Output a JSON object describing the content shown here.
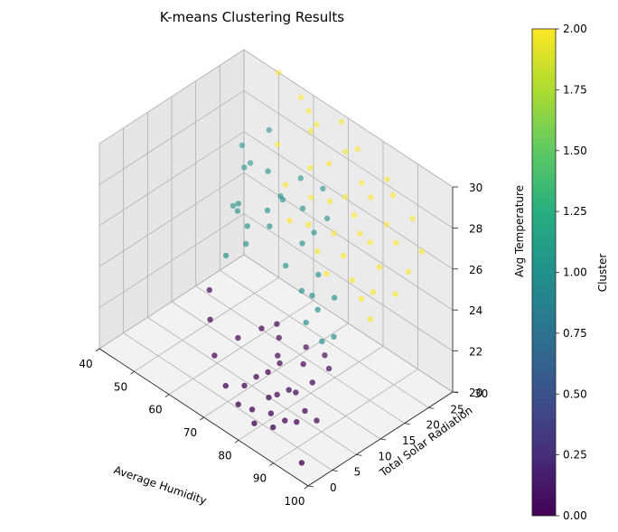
{
  "chart_data": {
    "type": "scatter",
    "title": "K-means Clustering Results",
    "xlabel": "Average Humidity",
    "ylabel": "Total Solar Radiation",
    "zlabel": "Avg Temperature",
    "xlim": [
      40,
      100
    ],
    "ylim": [
      0,
      30
    ],
    "zlim": [
      20,
      30
    ],
    "x_ticks": [
      40,
      50,
      60,
      70,
      80,
      90,
      100
    ],
    "y_ticks": [
      0,
      5,
      10,
      15,
      20,
      25,
      30
    ],
    "z_ticks": [
      20,
      22,
      24,
      26,
      28,
      30
    ],
    "grid": true,
    "colormap": "viridis",
    "colorbar": {
      "label": "Cluster",
      "min": 0.0,
      "max": 2.0,
      "ticks": [
        "0.00",
        "0.25",
        "0.50",
        "0.75",
        "1.00",
        "1.25",
        "1.50",
        "1.75",
        "2.00"
      ]
    },
    "cluster_colors": {
      "0": "#440154",
      "1": "#21918c",
      "2": "#fde725"
    },
    "series": [
      {
        "cluster": 0,
        "points": [
          [
            75,
            12,
            22.6
          ],
          [
            73,
            13,
            22.9
          ],
          [
            80,
            14,
            22.4
          ],
          [
            84,
            15,
            22.3
          ],
          [
            78,
            10,
            22.0
          ],
          [
            86,
            11,
            21.8
          ],
          [
            76,
            9,
            21.5
          ],
          [
            74,
            8,
            21.2
          ],
          [
            79,
            7,
            20.9
          ],
          [
            82,
            9,
            21.3
          ],
          [
            85,
            6,
            20.6
          ],
          [
            88,
            8,
            21.1
          ],
          [
            72,
            7,
            20.7
          ],
          [
            77,
            5,
            20.4
          ],
          [
            81,
            6,
            20.5
          ],
          [
            87,
            7,
            20.6
          ],
          [
            90,
            9,
            20.7
          ],
          [
            83,
            5,
            20.2
          ],
          [
            79,
            4,
            20.1
          ],
          [
            73,
            5,
            20.2
          ],
          [
            68,
            6,
            20.4
          ],
          [
            62,
            8,
            20.9
          ],
          [
            58,
            10,
            21.9
          ],
          [
            55,
            12,
            22.7
          ],
          [
            66,
            10,
            21.9
          ],
          [
            94,
            3,
            20.0
          ],
          [
            70,
            12,
            22.5
          ],
          [
            82,
            12,
            22.1
          ],
          [
            88,
            13,
            22.4
          ],
          [
            76,
            11,
            22.0
          ],
          [
            84,
            9,
            21.4
          ],
          [
            80,
            8,
            21.0
          ]
        ]
      },
      {
        "cluster": 1,
        "points": [
          [
            50,
            28,
            27.5
          ],
          [
            45,
            26,
            26.5
          ],
          [
            47,
            25,
            25.8
          ],
          [
            46,
            27,
            25.6
          ],
          [
            48,
            22,
            24.5
          ],
          [
            52,
            20,
            25.0
          ],
          [
            55,
            18,
            26.0
          ],
          [
            58,
            22,
            27.3
          ],
          [
            60,
            16,
            24.9
          ],
          [
            62,
            19,
            26.3
          ],
          [
            65,
            20,
            27.0
          ],
          [
            68,
            22,
            26.6
          ],
          [
            70,
            17,
            24.8
          ],
          [
            72,
            19,
            25.8
          ],
          [
            74,
            20,
            26.4
          ],
          [
            76,
            16,
            24.4
          ],
          [
            78,
            18,
            25.1
          ],
          [
            80,
            14,
            23.6
          ],
          [
            82,
            15,
            24.3
          ],
          [
            84,
            17,
            24.8
          ],
          [
            86,
            13,
            23.5
          ],
          [
            88,
            14,
            23.8
          ],
          [
            66,
            23,
            27.7
          ],
          [
            59,
            17,
            25.5
          ],
          [
            63,
            21,
            26.8
          ],
          [
            71,
            24,
            27.6
          ],
          [
            75,
            22,
            26.9
          ],
          [
            64,
            18,
            25.9
          ],
          [
            79,
            16,
            24.5
          ],
          [
            57,
            14,
            24.3
          ]
        ]
      },
      {
        "cluster": 2,
        "points": [
          [
            50,
            30,
            30.0
          ],
          [
            55,
            31,
            29.2
          ],
          [
            60,
            29,
            29.4
          ],
          [
            62,
            28,
            28.8
          ],
          [
            65,
            27,
            29.6
          ],
          [
            68,
            30,
            29.6
          ],
          [
            70,
            26,
            28.4
          ],
          [
            72,
            28,
            28.9
          ],
          [
            74,
            29,
            29.1
          ],
          [
            76,
            25,
            27.6
          ],
          [
            78,
            27,
            28.2
          ],
          [
            80,
            24,
            27.3
          ],
          [
            82,
            26,
            28.1
          ],
          [
            84,
            28,
            28.9
          ],
          [
            86,
            23,
            26.8
          ],
          [
            88,
            25,
            27.6
          ],
          [
            90,
            22,
            26.2
          ],
          [
            92,
            24,
            27.3
          ],
          [
            94,
            26,
            28.4
          ],
          [
            96,
            21,
            25.7
          ],
          [
            97,
            23,
            26.6
          ],
          [
            98,
            25,
            27.4
          ],
          [
            66,
            25,
            27.9
          ],
          [
            69,
            23,
            27.1
          ],
          [
            73,
            24,
            27.2
          ],
          [
            77,
            22,
            26.4
          ],
          [
            81,
            21,
            25.9
          ],
          [
            85,
            20,
            25.3
          ],
          [
            89,
            19,
            25.0
          ],
          [
            93,
            18,
            24.6
          ],
          [
            75,
            20,
            25.6
          ],
          [
            79,
            19,
            25.1
          ],
          [
            71,
            21,
            26.3
          ],
          [
            67,
            20,
            26.2
          ],
          [
            63,
            22,
            27.2
          ],
          [
            58,
            24,
            28.3
          ],
          [
            83,
            23,
            26.9
          ],
          [
            87,
            27,
            28.6
          ],
          [
            91,
            20,
            25.4
          ]
        ]
      }
    ]
  }
}
